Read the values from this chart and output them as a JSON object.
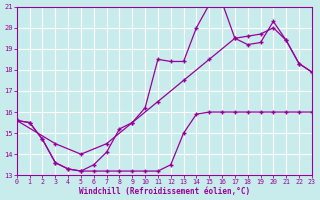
{
  "background_color": "#c8ecec",
  "grid_color": "#ffffff",
  "line_color": "#990099",
  "xlabel": "Windchill (Refroidissement éolien,°C)",
  "xlim": [
    0,
    23
  ],
  "ylim": [
    13,
    21
  ],
  "xticks": [
    0,
    1,
    2,
    3,
    4,
    5,
    6,
    7,
    8,
    9,
    10,
    11,
    12,
    13,
    14,
    15,
    16,
    17,
    18,
    19,
    20,
    21,
    22,
    23
  ],
  "yticks": [
    13,
    14,
    15,
    16,
    17,
    18,
    19,
    20,
    21
  ],
  "line1_x": [
    0,
    1,
    2,
    3,
    4,
    5,
    6,
    7,
    8,
    9,
    10,
    11,
    12,
    13,
    14,
    15,
    16,
    17,
    18,
    19,
    20,
    21,
    22,
    23
  ],
  "line1_y": [
    15.6,
    15.5,
    14.7,
    13.6,
    13.3,
    13.2,
    13.2,
    13.2,
    13.2,
    13.2,
    13.2,
    13.2,
    13.5,
    15.0,
    15.9,
    16.0,
    16.0,
    16.0,
    16.0,
    16.0,
    16.0,
    16.0,
    16.0,
    16.0
  ],
  "line2_x": [
    0,
    1,
    2,
    3,
    4,
    5,
    6,
    7,
    8,
    9,
    10,
    11,
    12,
    13,
    14,
    15,
    16,
    17,
    18,
    19,
    20,
    21,
    22,
    23
  ],
  "line2_y": [
    15.6,
    15.5,
    14.7,
    13.6,
    13.3,
    13.2,
    13.5,
    14.1,
    15.2,
    15.5,
    16.2,
    18.5,
    18.4,
    18.4,
    20.0,
    21.1,
    21.2,
    19.5,
    19.2,
    19.3,
    20.3,
    19.4,
    18.3,
    17.9
  ],
  "line3_x": [
    0,
    3,
    5,
    7,
    9,
    11,
    13,
    15,
    17,
    18,
    19,
    20,
    21,
    22,
    23
  ],
  "line3_y": [
    15.6,
    14.5,
    14.0,
    14.5,
    15.5,
    16.5,
    17.5,
    18.5,
    19.5,
    19.6,
    19.7,
    20.0,
    19.4,
    18.3,
    17.9
  ]
}
